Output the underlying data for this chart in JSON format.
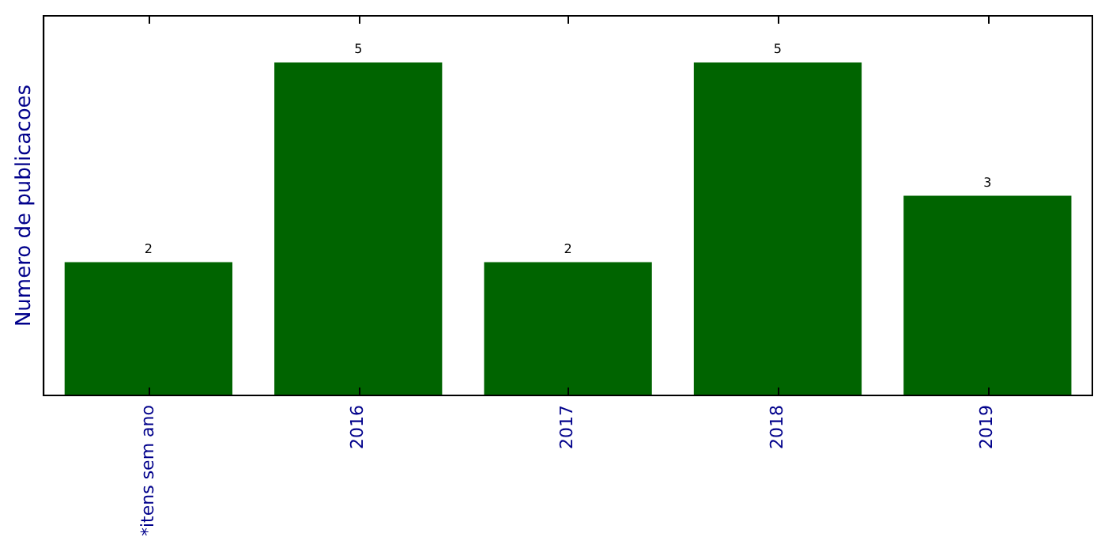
{
  "chart_data": {
    "type": "bar",
    "ylabel": "Numero de publicacoes",
    "categories": [
      "*itens sem ano",
      "2016",
      "2017",
      "2018",
      "2019"
    ],
    "values": [
      2,
      5,
      2,
      5,
      3
    ],
    "color": "#006400",
    "ylim": [
      0,
      5.7
    ],
    "data_labels": true,
    "grid": false,
    "legend": false,
    "tick_labels": "x"
  }
}
